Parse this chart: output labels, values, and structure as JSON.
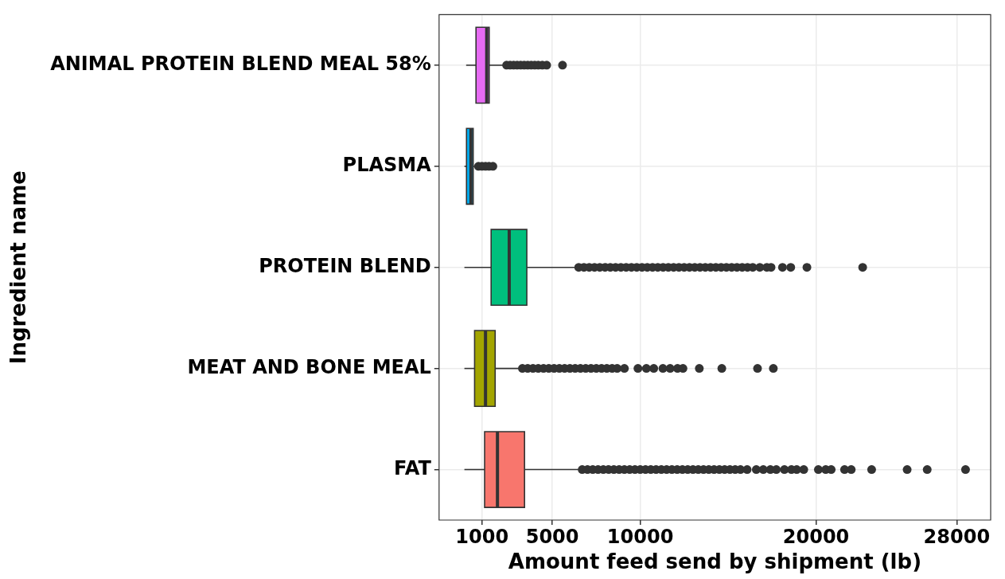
{
  "chart_data": {
    "type": "box",
    "orientation": "horizontal",
    "xlabel": "Amount feed send by shipment (lb)",
    "ylabel": "Ingredient name",
    "categories": [
      "ANIMAL PROTEIN BLEND MEAL 58%",
      "PLASMA",
      "PROTEIN BLEND",
      "MEAT AND BONE MEAL",
      "FAT"
    ],
    "colors": [
      "#e76bf3",
      "#00b0f6",
      "#00bf7d",
      "#a3a500",
      "#f8766d"
    ],
    "boxes": [
      {
        "low": 100,
        "q1": 660,
        "median": 1270,
        "q3": 1410,
        "high": 2340,
        "outliers": [
          2400,
          2600,
          2800,
          3000,
          3200,
          3400,
          3600,
          3800,
          4000,
          4200,
          4430,
          4680,
          5580
        ]
      },
      {
        "low": 0,
        "q1": 120,
        "median": 370,
        "q3": 500,
        "high": 790,
        "outliers": [
          800,
          1000,
          1200,
          1400,
          1620
        ]
      },
      {
        "low": 0,
        "q1": 1520,
        "median": 2550,
        "q3": 3550,
        "high": 6440,
        "outliers": [
          6500,
          6800,
          7100,
          7400,
          7700,
          8000,
          8300,
          8600,
          8900,
          9200,
          9500,
          9800,
          10100,
          10400,
          10700,
          11000,
          11300,
          11600,
          11900,
          12200,
          12500,
          12800,
          13100,
          13400,
          13700,
          14000,
          14300,
          14600,
          14900,
          15200,
          15500,
          15800,
          16100,
          16400,
          16800,
          17200,
          17440,
          18090,
          18560,
          19480,
          22650
        ]
      },
      {
        "low": 0,
        "q1": 580,
        "median": 1200,
        "q3": 1750,
        "high": 3280,
        "outliers": [
          3300,
          3600,
          3900,
          4200,
          4500,
          4800,
          5100,
          5400,
          5700,
          6000,
          6300,
          6600,
          6900,
          7200,
          7500,
          7800,
          8100,
          8400,
          8690,
          9100,
          9870,
          10350,
          10770,
          11290,
          11700,
          12120,
          12430,
          13360,
          14640,
          16670,
          17570
        ]
      },
      {
        "low": 0,
        "q1": 1150,
        "median": 1880,
        "q3": 3420,
        "high": 6620,
        "outliers": [
          6700,
          7000,
          7300,
          7600,
          7900,
          8200,
          8500,
          8800,
          9100,
          9400,
          9700,
          10000,
          10300,
          10600,
          10900,
          11200,
          11500,
          11800,
          12100,
          12400,
          12700,
          13000,
          13300,
          13600,
          13900,
          14200,
          14500,
          14800,
          15100,
          15400,
          15700,
          16080,
          16600,
          17000,
          17400,
          17740,
          18200,
          18600,
          18900,
          19300,
          20130,
          20550,
          20860,
          21620,
          22000,
          23160,
          25180,
          26320,
          28500
        ]
      }
    ],
    "xlim": [
      -1440,
      29930
    ],
    "xticks": [
      1000,
      5000,
      10000,
      20000,
      28000
    ],
    "grid": true
  }
}
